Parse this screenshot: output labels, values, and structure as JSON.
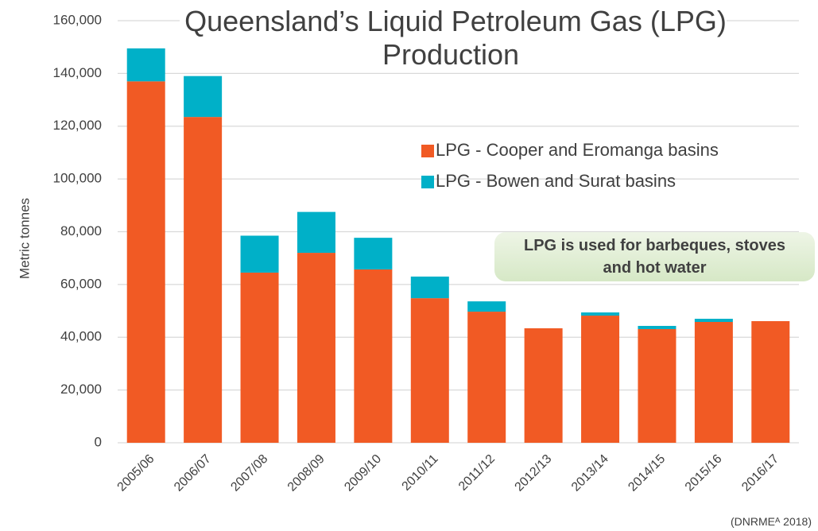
{
  "chart_data": {
    "type": "stacked_bar",
    "title": "Queensland’s Liquid Petroleum Gas (LPG) Production",
    "y_label": "Metric tonnes",
    "annotation": "LPG is used for barbeques, stoves and hot water",
    "source": "(DNRMEᴬ 2018)",
    "categories": [
      "2005/06",
      "2006/07",
      "2007/08",
      "2008/09",
      "2009/10",
      "2010/11",
      "2011/12",
      "2012/13",
      "2013/14",
      "2014/15",
      "2015/16",
      "2016/17"
    ],
    "series": [
      {
        "name": "LPG - Cooper and Eromanga basins",
        "color": "#f15a24",
        "values": [
          137000,
          123500,
          64500,
          72000,
          65700,
          54800,
          49700,
          43400,
          48200,
          43100,
          45800,
          46100
        ]
      },
      {
        "name": "LPG - Bowen and Surat basins",
        "color": "#00b0c8",
        "values": [
          12500,
          15500,
          14000,
          15500,
          12000,
          8200,
          3900,
          0,
          1200,
          1200,
          1200,
          0
        ]
      }
    ],
    "ylim": [
      0,
      160000
    ],
    "yticks": [
      0,
      {
        "value": 20000,
        "label": "20,000"
      },
      {
        "value": 40000,
        "label": "40,000"
      },
      {
        "value": 60000,
        "label": "60,000"
      },
      {
        "value": 80000,
        "label": "80,000"
      },
      {
        "value": 100000,
        "label": "100,000"
      },
      {
        "value": 120000,
        "label": "120,000"
      },
      {
        "value": 140000,
        "label": "140,000"
      },
      {
        "value": 160000,
        "label": "160,000"
      }
    ],
    "grid": true
  }
}
